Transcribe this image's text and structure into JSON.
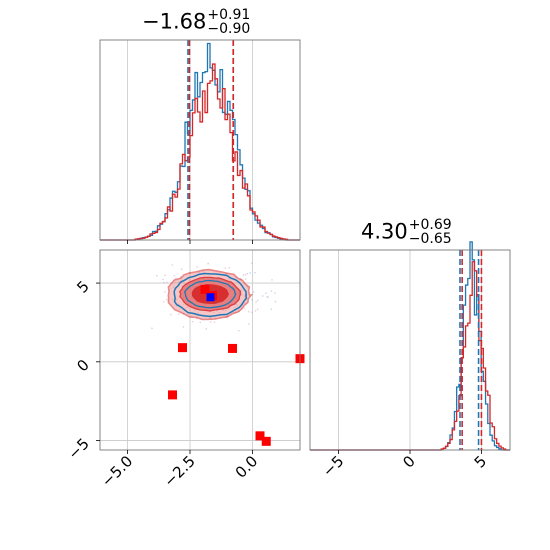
{
  "chart_data": {
    "type": "corner",
    "panel_titles": [
      {
        "main": "−1.68",
        "sup": "+0.91",
        "sub": "−0.90"
      },
      {
        "main": "4.30",
        "sup": "+0.69",
        "sub": "−0.65"
      }
    ],
    "param1_hist": {
      "xlim": [
        -6.1,
        1.9
      ],
      "blue_quantile_lines": [
        -2.58,
        -0.77
      ],
      "red_quantile_lines": [
        -2.52,
        -0.77
      ]
    },
    "scatter_2d": {
      "xlim": [
        -6.1,
        1.9
      ],
      "ylim": [
        -5.6,
        7.1
      ],
      "x_ticks": [
        "−5.0",
        "−2.5",
        "0.0"
      ],
      "y_ticks": [
        "5",
        "0",
        "−5"
      ],
      "blue_marker": {
        "x": -1.68,
        "y": 4.1
      },
      "red_markers": [
        {
          "x": -1.9,
          "y": 4.6
        },
        {
          "x": -1.6,
          "y": 4.2
        },
        {
          "x": -2.8,
          "y": 0.9
        },
        {
          "x": -0.8,
          "y": 0.85
        },
        {
          "x": 1.9,
          "y": 0.2
        },
        {
          "x": -3.2,
          "y": -2.1
        },
        {
          "x": 0.3,
          "y": -4.7
        },
        {
          "x": 0.55,
          "y": -5.05
        }
      ]
    },
    "param2_hist": {
      "xlim": [
        -7.0,
        7.0
      ],
      "x_ticks": [
        "−5",
        "0",
        "5"
      ],
      "blue_quantile_lines": [
        3.5,
        4.8
      ],
      "red_quantile_lines": [
        3.65,
        5.0
      ]
    },
    "colors": {
      "blue": "#1f77b4",
      "red": "#d62728",
      "grid": "#c8c8c8"
    }
  }
}
